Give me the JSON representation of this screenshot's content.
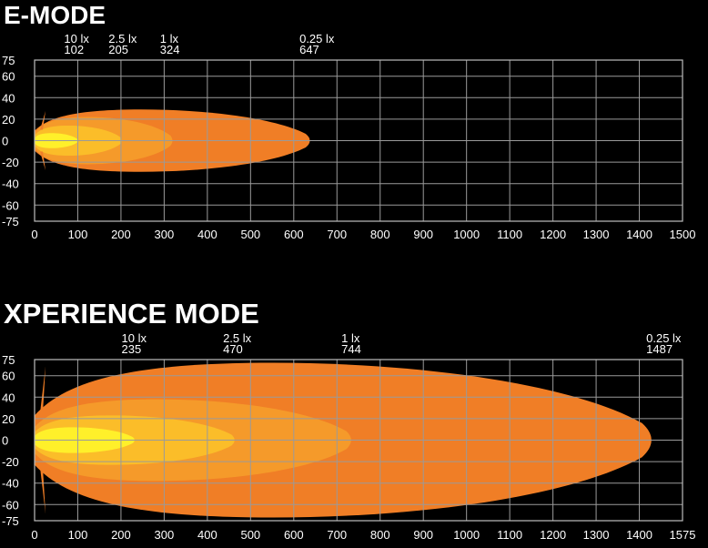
{
  "chart_data": [
    {
      "type": "area",
      "title": "E-MODE",
      "xlim": [
        0,
        1500
      ],
      "ylim": [
        -75,
        75
      ],
      "x_ticks": [
        0,
        100,
        200,
        300,
        400,
        500,
        600,
        700,
        800,
        900,
        1000,
        1100,
        1200,
        1300,
        1400,
        1500
      ],
      "y_ticks": [
        75,
        60,
        40,
        20,
        0,
        -20,
        -40,
        -60,
        -75
      ],
      "grid": true,
      "zones": [
        {
          "lux": "0.25 lx",
          "distance": 647,
          "half_width": 29,
          "color": "#f07e26"
        },
        {
          "lux": "1 lx",
          "distance": 324,
          "half_width": 22,
          "color": "#f59a2a"
        },
        {
          "lux": "2.5 lx",
          "distance": 205,
          "half_width": 14,
          "color": "#fbbd29"
        },
        {
          "lux": "10 lx",
          "distance": 102,
          "half_width": 7,
          "color": "#fff02a"
        }
      ],
      "markers": [
        {
          "lux": "10 lx",
          "distance": "102",
          "x": 102
        },
        {
          "lux": "2.5 lx",
          "distance": "205",
          "x": 205
        },
        {
          "lux": "1 lx",
          "distance": "324",
          "x": 324
        },
        {
          "lux": "0.25 lx",
          "distance": "647",
          "x": 647
        }
      ]
    },
    {
      "type": "area",
      "title": "XPERIENCE MODE",
      "xlim": [
        0,
        1575
      ],
      "ylim": [
        -75,
        75
      ],
      "x_ticks": [
        0,
        100,
        200,
        300,
        400,
        500,
        600,
        700,
        800,
        900,
        1000,
        1100,
        1200,
        1300,
        1400,
        1575
      ],
      "y_ticks": [
        75,
        60,
        40,
        20,
        0,
        -20,
        -40,
        -60,
        -75
      ],
      "grid": true,
      "zones": [
        {
          "lux": "0.25 lx",
          "distance": 1487,
          "half_width": 72,
          "color": "#f07e26"
        },
        {
          "lux": "1 lx",
          "distance": 744,
          "half_width": 38,
          "color": "#f59a2a"
        },
        {
          "lux": "2.5 lx",
          "distance": 470,
          "half_width": 23,
          "color": "#fbbd29"
        },
        {
          "lux": "10 lx",
          "distance": 235,
          "half_width": 12,
          "color": "#fff02a"
        }
      ],
      "markers": [
        {
          "lux": "10 lx",
          "distance": "235",
          "x": 235
        },
        {
          "lux": "2.5 lx",
          "distance": "470",
          "x": 470
        },
        {
          "lux": "1 lx",
          "distance": "744",
          "x": 744
        },
        {
          "lux": "0.25 lx",
          "distance": "1487",
          "x": 1487
        }
      ]
    }
  ]
}
